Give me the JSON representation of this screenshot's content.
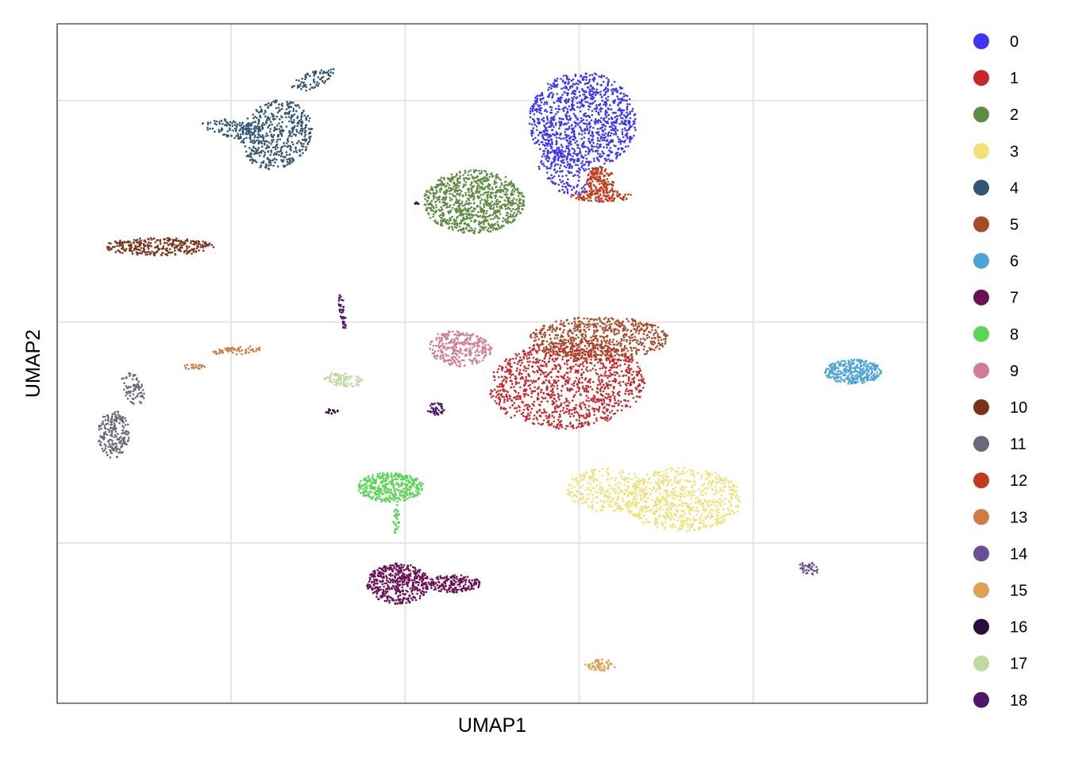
{
  "chart_data": {
    "type": "scatter",
    "title": "",
    "xlabel": "UMAP1",
    "ylabel": "UMAP2",
    "xlim": [
      0,
      100
    ],
    "ylim": [
      0,
      100
    ],
    "xticks": [
      0,
      20,
      40,
      60,
      80
    ],
    "yticks": [
      23.6,
      56.1,
      88.7
    ],
    "x_tick_labels": [],
    "y_tick_labels": [],
    "grid": true,
    "legend_position": "right",
    "series": [
      {
        "name": "0",
        "color": "#3c35f7",
        "clusters": [
          {
            "cx": 60.4,
            "cy": 85.7,
            "rx": 6.2,
            "ry": 7.2,
            "rot": 0.0,
            "n": 1100
          },
          {
            "cx": 58.2,
            "cy": 78.2,
            "rx": 2.4,
            "ry": 4.0,
            "rot": 0.6,
            "n": 160
          }
        ]
      },
      {
        "name": "1",
        "color": "#c4282a",
        "clusters": [
          {
            "cx": 58.6,
            "cy": 46.9,
            "rx": 9.0,
            "ry": 6.5,
            "rot": 0.1,
            "n": 1200
          }
        ]
      },
      {
        "name": "2",
        "color": "#5e8c42",
        "clusters": [
          {
            "cx": 47.9,
            "cy": 73.8,
            "rx": 5.8,
            "ry": 4.7,
            "rot": 0.0,
            "n": 900
          }
        ]
      },
      {
        "name": "3",
        "color": "#efe176",
        "clusters": [
          {
            "cx": 71.9,
            "cy": 30.0,
            "rx": 6.8,
            "ry": 4.7,
            "rot": 0.0,
            "n": 700
          },
          {
            "cx": 63.2,
            "cy": 31.4,
            "rx": 4.7,
            "ry": 3.2,
            "rot": 0.0,
            "n": 250
          }
        ]
      },
      {
        "name": "4",
        "color": "#325673",
        "clusters": [
          {
            "cx": 25.2,
            "cy": 83.7,
            "rx": 4.0,
            "ry": 5.2,
            "rot": -0.3,
            "n": 500
          },
          {
            "cx": 20.4,
            "cy": 84.5,
            "rx": 3.8,
            "ry": 1.3,
            "rot": -0.2,
            "n": 120
          },
          {
            "cx": 29.5,
            "cy": 91.8,
            "rx": 2.8,
            "ry": 1.2,
            "rot": 0.5,
            "n": 80
          }
        ]
      },
      {
        "name": "5",
        "color": "#a84b29",
        "clusters": [
          {
            "cx": 62.3,
            "cy": 53.7,
            "rx": 8.0,
            "ry": 3.2,
            "rot": 0.0,
            "n": 650
          }
        ]
      },
      {
        "name": "6",
        "color": "#4ea4d9",
        "clusters": [
          {
            "cx": 91.5,
            "cy": 48.8,
            "rx": 3.3,
            "ry": 1.8,
            "rot": 0.0,
            "n": 350
          }
        ]
      },
      {
        "name": "7",
        "color": "#6c1055",
        "clusters": [
          {
            "cx": 39.2,
            "cy": 17.6,
            "rx": 3.6,
            "ry": 3.0,
            "rot": 0.0,
            "n": 450
          },
          {
            "cx": 45.6,
            "cy": 17.6,
            "rx": 3.1,
            "ry": 1.3,
            "rot": 0.0,
            "n": 180
          },
          {
            "cx": 38.8,
            "cy": 19.6,
            "rx": 1.2,
            "ry": 0.6,
            "rot": 0.0,
            "n": 0
          }
        ]
      },
      {
        "name": "8",
        "color": "#5cd456",
        "clusters": [
          {
            "cx": 38.3,
            "cy": 31.8,
            "rx": 3.8,
            "ry": 2.2,
            "rot": 0.0,
            "n": 400
          },
          {
            "cx": 39.0,
            "cy": 26.9,
            "rx": 0.4,
            "ry": 2.4,
            "rot": 0.0,
            "n": 30
          }
        ]
      },
      {
        "name": "9",
        "color": "#cf7d95",
        "clusters": [
          {
            "cx": 46.2,
            "cy": 52.2,
            "rx": 3.8,
            "ry": 2.6,
            "rot": -0.15,
            "n": 300
          }
        ]
      },
      {
        "name": "10",
        "color": "#7a3318",
        "clusters": [
          {
            "cx": 11.7,
            "cy": 67.2,
            "rx": 6.3,
            "ry": 1.3,
            "rot": 0.0,
            "n": 300
          }
        ]
      },
      {
        "name": "11",
        "color": "#6e6679",
        "clusters": [
          {
            "cx": 6.5,
            "cy": 39.6,
            "rx": 1.8,
            "ry": 3.5,
            "rot": 0.0,
            "n": 200
          },
          {
            "cx": 8.7,
            "cy": 46.3,
            "rx": 1.2,
            "ry": 2.5,
            "rot": 0.25,
            "n": 80
          }
        ]
      },
      {
        "name": "12",
        "color": "#c23b1e",
        "clusters": [
          {
            "cx": 62.5,
            "cy": 74.7,
            "rx": 3.5,
            "ry": 0.9,
            "rot": 0.0,
            "n": 120
          },
          {
            "cx": 62.4,
            "cy": 76.8,
            "rx": 1.6,
            "ry": 2.2,
            "rot": 0.0,
            "n": 150
          }
        ]
      },
      {
        "name": "13",
        "color": "#ce7c44",
        "clusters": [
          {
            "cx": 20.6,
            "cy": 51.9,
            "rx": 2.8,
            "ry": 0.6,
            "rot": 0.1,
            "n": 60
          },
          {
            "cx": 15.6,
            "cy": 49.5,
            "rx": 1.4,
            "ry": 0.4,
            "rot": 0.0,
            "n": 25
          }
        ]
      },
      {
        "name": "14",
        "color": "#6a4e98",
        "clusters": [
          {
            "cx": 86.4,
            "cy": 19.9,
            "rx": 1.2,
            "ry": 0.9,
            "rot": -0.5,
            "n": 40
          }
        ]
      },
      {
        "name": "15",
        "color": "#dea156",
        "clusters": [
          {
            "cx": 62.4,
            "cy": 5.6,
            "rx": 1.8,
            "ry": 0.9,
            "rot": 0.0,
            "n": 60
          }
        ]
      },
      {
        "name": "16",
        "color": "#2d0d3e",
        "clusters": [
          {
            "cx": 31.6,
            "cy": 43.0,
            "rx": 0.8,
            "ry": 0.4,
            "rot": 0.0,
            "n": 15
          },
          {
            "cx": 41.2,
            "cy": 73.6,
            "rx": 0.4,
            "ry": 0.2,
            "rot": 0.0,
            "n": 6
          }
        ]
      },
      {
        "name": "17",
        "color": "#c0d9a0",
        "clusters": [
          {
            "cx": 32.9,
            "cy": 47.6,
            "rx": 2.2,
            "ry": 1.0,
            "rot": -0.15,
            "n": 90
          }
        ]
      },
      {
        "name": "18",
        "color": "#4f176c",
        "clusters": [
          {
            "cx": 43.5,
            "cy": 43.3,
            "rx": 1.0,
            "ry": 1.0,
            "rot": 0.0,
            "n": 45
          },
          {
            "cx": 32.8,
            "cy": 57.6,
            "rx": 0.35,
            "ry": 2.6,
            "rot": 0.1,
            "n": 40
          }
        ]
      }
    ]
  }
}
